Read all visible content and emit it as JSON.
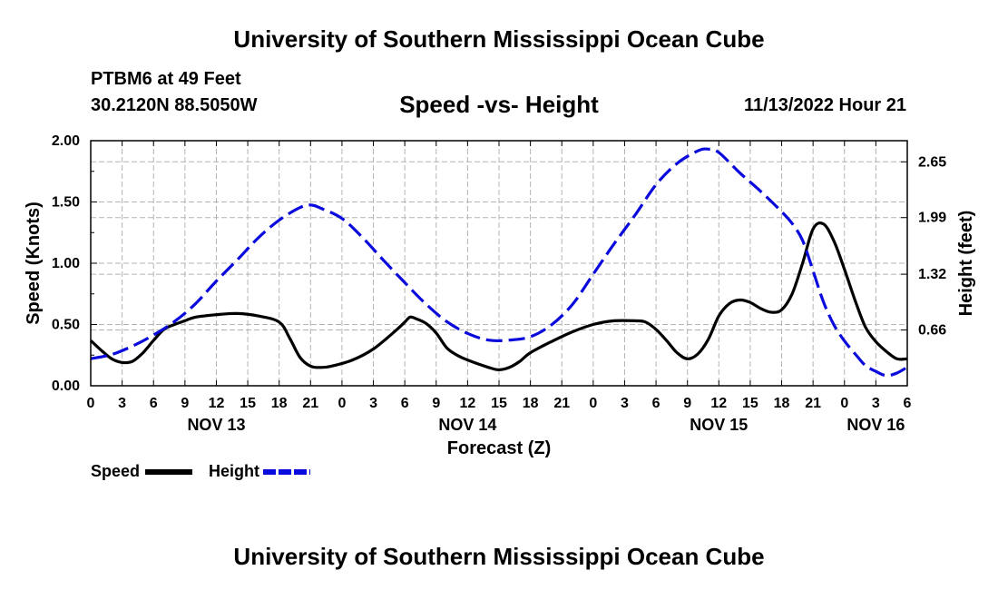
{
  "header": {
    "title": "University of Southern Mississippi Ocean Cube",
    "station": "PTBM6 at 49 Feet",
    "coords": "30.2120N  88.5050W",
    "subtitle": "Speed -vs- Height",
    "datetime": "11/13/2022 Hour 21"
  },
  "footer": {
    "title": "University of Southern Mississippi Ocean Cube"
  },
  "colors": {
    "speed": "#000000",
    "height": "#0a0adc",
    "grid": "#b4b4b4"
  },
  "chart_data": {
    "type": "line",
    "title": "Speed -vs- Height",
    "xlabel": "Forecast (Z)",
    "ylabel": "Speed (Knots)",
    "y2label": "Height (feet)",
    "x_range_hours": [
      0,
      78
    ],
    "x_tick_step_hours": 3,
    "x_tick_labels": [
      "0",
      "3",
      "6",
      "9",
      "12",
      "15",
      "18",
      "21",
      "0",
      "3",
      "6",
      "9",
      "12",
      "15",
      "18",
      "21",
      "0",
      "3",
      "6",
      "9",
      "12",
      "15",
      "18",
      "21",
      "0",
      "3",
      "6"
    ],
    "date_labels": [
      {
        "label": "NOV 13",
        "hour": 12
      },
      {
        "label": "NOV 14",
        "hour": 36
      },
      {
        "label": "NOV 15",
        "hour": 60
      },
      {
        "label": "NOV 16",
        "hour": 75
      }
    ],
    "ylim": [
      0,
      2.0
    ],
    "y_ticks": [
      "0.00",
      "0.50",
      "1.00",
      "1.50",
      "2.00"
    ],
    "y2_ticks": [
      "0.66",
      "1.32",
      "1.99",
      "2.65"
    ],
    "y2lim": [
      0,
      2.9
    ],
    "legend": {
      "speed": "Speed",
      "height": "Height"
    },
    "grid": true,
    "series": [
      {
        "name": "Speed",
        "axis": "left",
        "style": "solid",
        "points": [
          [
            0,
            0.37
          ],
          [
            1,
            0.29
          ],
          [
            2,
            0.22
          ],
          [
            3,
            0.19
          ],
          [
            4,
            0.2
          ],
          [
            5,
            0.27
          ],
          [
            6,
            0.37
          ],
          [
            7,
            0.46
          ],
          [
            8,
            0.5
          ],
          [
            9,
            0.53
          ],
          [
            10,
            0.56
          ],
          [
            12,
            0.58
          ],
          [
            14,
            0.59
          ],
          [
            16,
            0.57
          ],
          [
            18,
            0.52
          ],
          [
            19,
            0.39
          ],
          [
            20,
            0.23
          ],
          [
            21,
            0.16
          ],
          [
            22,
            0.15
          ],
          [
            23,
            0.16
          ],
          [
            25,
            0.21
          ],
          [
            27,
            0.3
          ],
          [
            29,
            0.44
          ],
          [
            30,
            0.52
          ],
          [
            30.5,
            0.56
          ],
          [
            31,
            0.55
          ],
          [
            32,
            0.51
          ],
          [
            33,
            0.43
          ],
          [
            34,
            0.31
          ],
          [
            35,
            0.25
          ],
          [
            36,
            0.21
          ],
          [
            38,
            0.15
          ],
          [
            39,
            0.13
          ],
          [
            40,
            0.15
          ],
          [
            41,
            0.2
          ],
          [
            42,
            0.27
          ],
          [
            44,
            0.36
          ],
          [
            46,
            0.44
          ],
          [
            48,
            0.5
          ],
          [
            50,
            0.53
          ],
          [
            52,
            0.53
          ],
          [
            53,
            0.52
          ],
          [
            54,
            0.46
          ],
          [
            55,
            0.37
          ],
          [
            56,
            0.27
          ],
          [
            57,
            0.22
          ],
          [
            58,
            0.26
          ],
          [
            59,
            0.38
          ],
          [
            60,
            0.57
          ],
          [
            61,
            0.67
          ],
          [
            62,
            0.7
          ],
          [
            63,
            0.68
          ],
          [
            64,
            0.63
          ],
          [
            65,
            0.6
          ],
          [
            66,
            0.62
          ],
          [
            67,
            0.75
          ],
          [
            68,
            1.0
          ],
          [
            69,
            1.28
          ],
          [
            70,
            1.32
          ],
          [
            71,
            1.18
          ],
          [
            72,
            0.95
          ],
          [
            73,
            0.7
          ],
          [
            74,
            0.48
          ],
          [
            75,
            0.36
          ],
          [
            76,
            0.28
          ],
          [
            77,
            0.22
          ],
          [
            78,
            0.22
          ]
        ]
      },
      {
        "name": "Height",
        "axis": "right",
        "style": "dashed",
        "points": [
          [
            0,
            0.32
          ],
          [
            2,
            0.37
          ],
          [
            4,
            0.47
          ],
          [
            6,
            0.6
          ],
          [
            8,
            0.76
          ],
          [
            10,
            0.97
          ],
          [
            12,
            1.24
          ],
          [
            14,
            1.49
          ],
          [
            16,
            1.75
          ],
          [
            18,
            1.96
          ],
          [
            20,
            2.11
          ],
          [
            21,
            2.14
          ],
          [
            22,
            2.1
          ],
          [
            24,
            1.98
          ],
          [
            26,
            1.75
          ],
          [
            28,
            1.48
          ],
          [
            30,
            1.22
          ],
          [
            32,
            0.97
          ],
          [
            34,
            0.76
          ],
          [
            36,
            0.62
          ],
          [
            38,
            0.54
          ],
          [
            40,
            0.54
          ],
          [
            42,
            0.58
          ],
          [
            44,
            0.72
          ],
          [
            46,
            0.96
          ],
          [
            48,
            1.32
          ],
          [
            50,
            1.68
          ],
          [
            52,
            2.02
          ],
          [
            54,
            2.38
          ],
          [
            56,
            2.63
          ],
          [
            58,
            2.78
          ],
          [
            59,
            2.8
          ],
          [
            60,
            2.76
          ],
          [
            62,
            2.52
          ],
          [
            64,
            2.3
          ],
          [
            66,
            2.06
          ],
          [
            67,
            1.92
          ],
          [
            68,
            1.72
          ],
          [
            69,
            1.36
          ],
          [
            70,
            0.99
          ],
          [
            71,
            0.72
          ],
          [
            72,
            0.53
          ],
          [
            73,
            0.38
          ],
          [
            74,
            0.24
          ],
          [
            75,
            0.17
          ],
          [
            76,
            0.12
          ],
          [
            77,
            0.15
          ],
          [
            78,
            0.22
          ]
        ]
      }
    ]
  }
}
